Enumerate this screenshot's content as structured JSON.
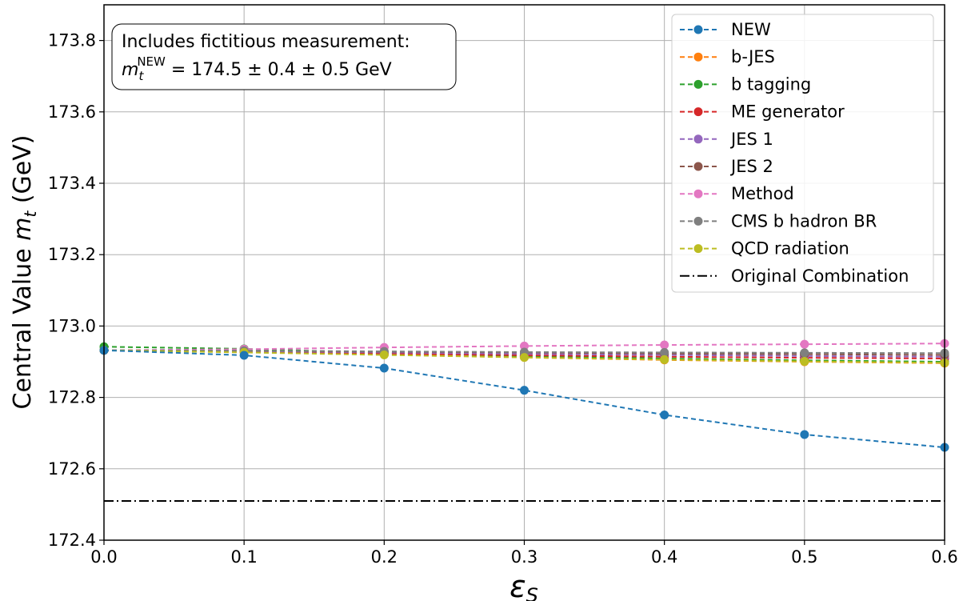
{
  "chart_data": {
    "type": "line",
    "xlabel_symbol": "ε",
    "xlabel_sub": "S",
    "ylabel_prefix": "Central Value ",
    "ylabel_symbol": "m",
    "ylabel_sub": "t",
    "ylabel_suffix": " (GeV)",
    "xlim": [
      0.0,
      0.6
    ],
    "ylim": [
      172.4,
      173.9
    ],
    "grid": true,
    "legend_position": "top-right",
    "x": [
      0.0,
      0.1,
      0.2,
      0.3,
      0.4,
      0.5,
      0.6
    ],
    "x_ticks": [
      "0.0",
      "0.1",
      "0.2",
      "0.3",
      "0.4",
      "0.5",
      "0.6"
    ],
    "y_ticks": [
      "172.4",
      "172.6",
      "172.8",
      "173.0",
      "173.2",
      "173.4",
      "173.6",
      "173.8"
    ],
    "annotation": {
      "line1": "Includes fictitious measurement:",
      "line2_symbol": "m",
      "line2_sub": "t",
      "line2_sup": "NEW",
      "line2_rest": " = 174.5 ± 0.4 ± 0.5 GeV"
    },
    "series": [
      {
        "name": "NEW",
        "color": "#1f77b4",
        "values": [
          172.932,
          172.918,
          172.882,
          172.82,
          172.751,
          172.696,
          172.66
        ]
      },
      {
        "name": "b-JES",
        "color": "#ff7f0e",
        "values": [
          172.932,
          172.927,
          172.92,
          172.912,
          172.905,
          172.9,
          172.896
        ]
      },
      {
        "name": "b tagging",
        "color": "#2ca02c",
        "values": [
          172.942,
          172.936,
          172.925,
          172.916,
          172.909,
          172.904,
          172.9
        ]
      },
      {
        "name": "ME generator",
        "color": "#d62728",
        "values": [
          172.932,
          172.928,
          172.923,
          172.918,
          172.914,
          172.911,
          172.909
        ]
      },
      {
        "name": "JES 1",
        "color": "#9467bd",
        "values": [
          172.932,
          172.93,
          172.926,
          172.922,
          172.919,
          172.916,
          172.914
        ]
      },
      {
        "name": "JES 2",
        "color": "#8c564b",
        "values": [
          172.932,
          172.931,
          172.928,
          172.926,
          172.923,
          172.921,
          172.919
        ]
      },
      {
        "name": "Method",
        "color": "#e377c2",
        "values": [
          172.932,
          172.935,
          172.94,
          172.944,
          172.947,
          172.949,
          172.951
        ]
      },
      {
        "name": "CMS b hadron BR",
        "color": "#7f7f7f",
        "values": [
          172.932,
          172.931,
          172.929,
          172.927,
          172.926,
          172.925,
          172.924
        ]
      },
      {
        "name": "QCD radiation",
        "color": "#bcbd22",
        "values": [
          172.932,
          172.926,
          172.919,
          172.912,
          172.906,
          172.901,
          172.897
        ]
      }
    ],
    "reference_line": {
      "name": "Original Combination",
      "value": 172.51,
      "color": "#000000"
    }
  }
}
